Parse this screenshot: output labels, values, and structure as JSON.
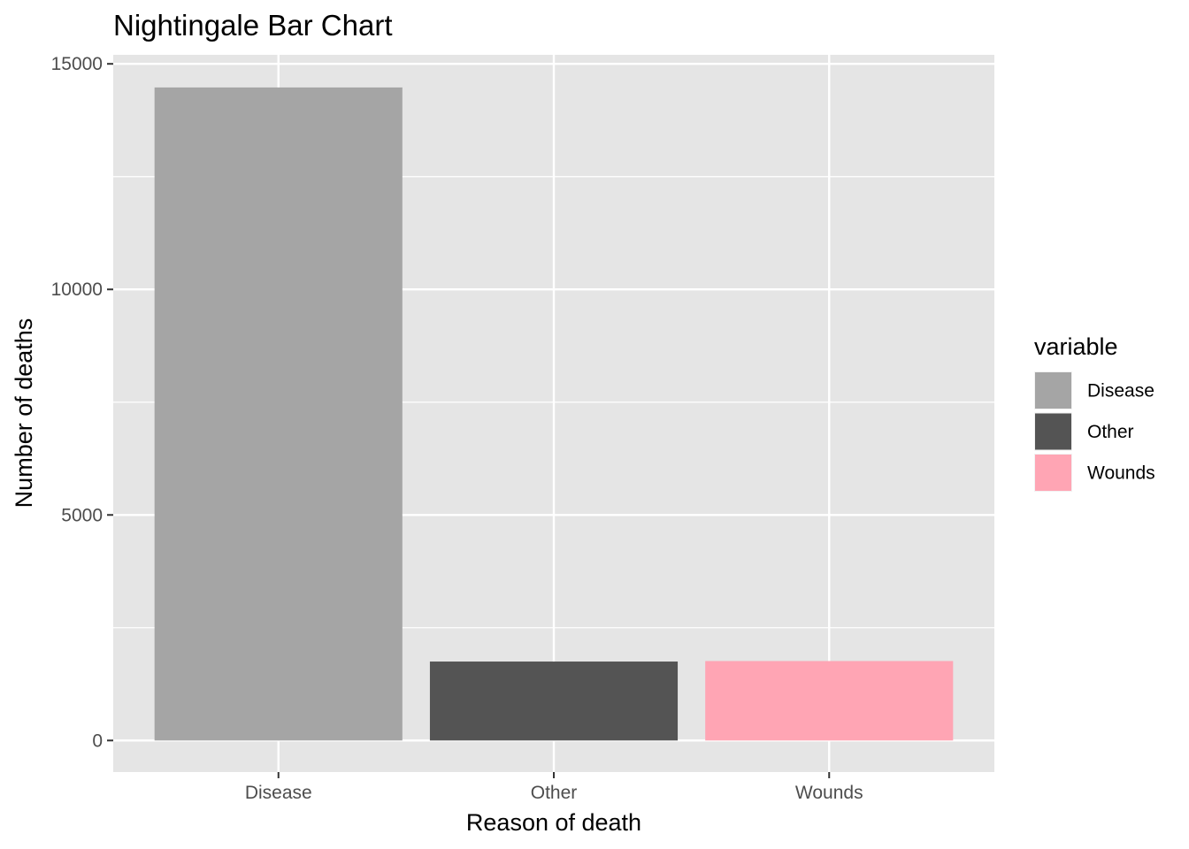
{
  "chart_data": {
    "type": "bar",
    "title": "Nightingale Bar Chart",
    "xlabel": "Reason of death",
    "ylabel": "Number of deaths",
    "categories": [
      "Disease",
      "Other",
      "Wounds"
    ],
    "values": [
      14477,
      1750,
      1761
    ],
    "colors": [
      "#a5a5a5",
      "#545454",
      "#ffa5b4"
    ],
    "ylim": [
      -700,
      15200
    ],
    "yticks": [
      0,
      5000,
      10000,
      15000
    ],
    "ytick_labels": [
      "0",
      "5000",
      "10000",
      "15000"
    ],
    "grid": true,
    "background": "#e5e5e5",
    "legend": {
      "title": "variable",
      "position": "right",
      "entries": [
        {
          "label": "Disease",
          "color": "#a5a5a5"
        },
        {
          "label": "Other",
          "color": "#545454"
        },
        {
          "label": "Wounds",
          "color": "#ffa5b4"
        }
      ]
    }
  }
}
